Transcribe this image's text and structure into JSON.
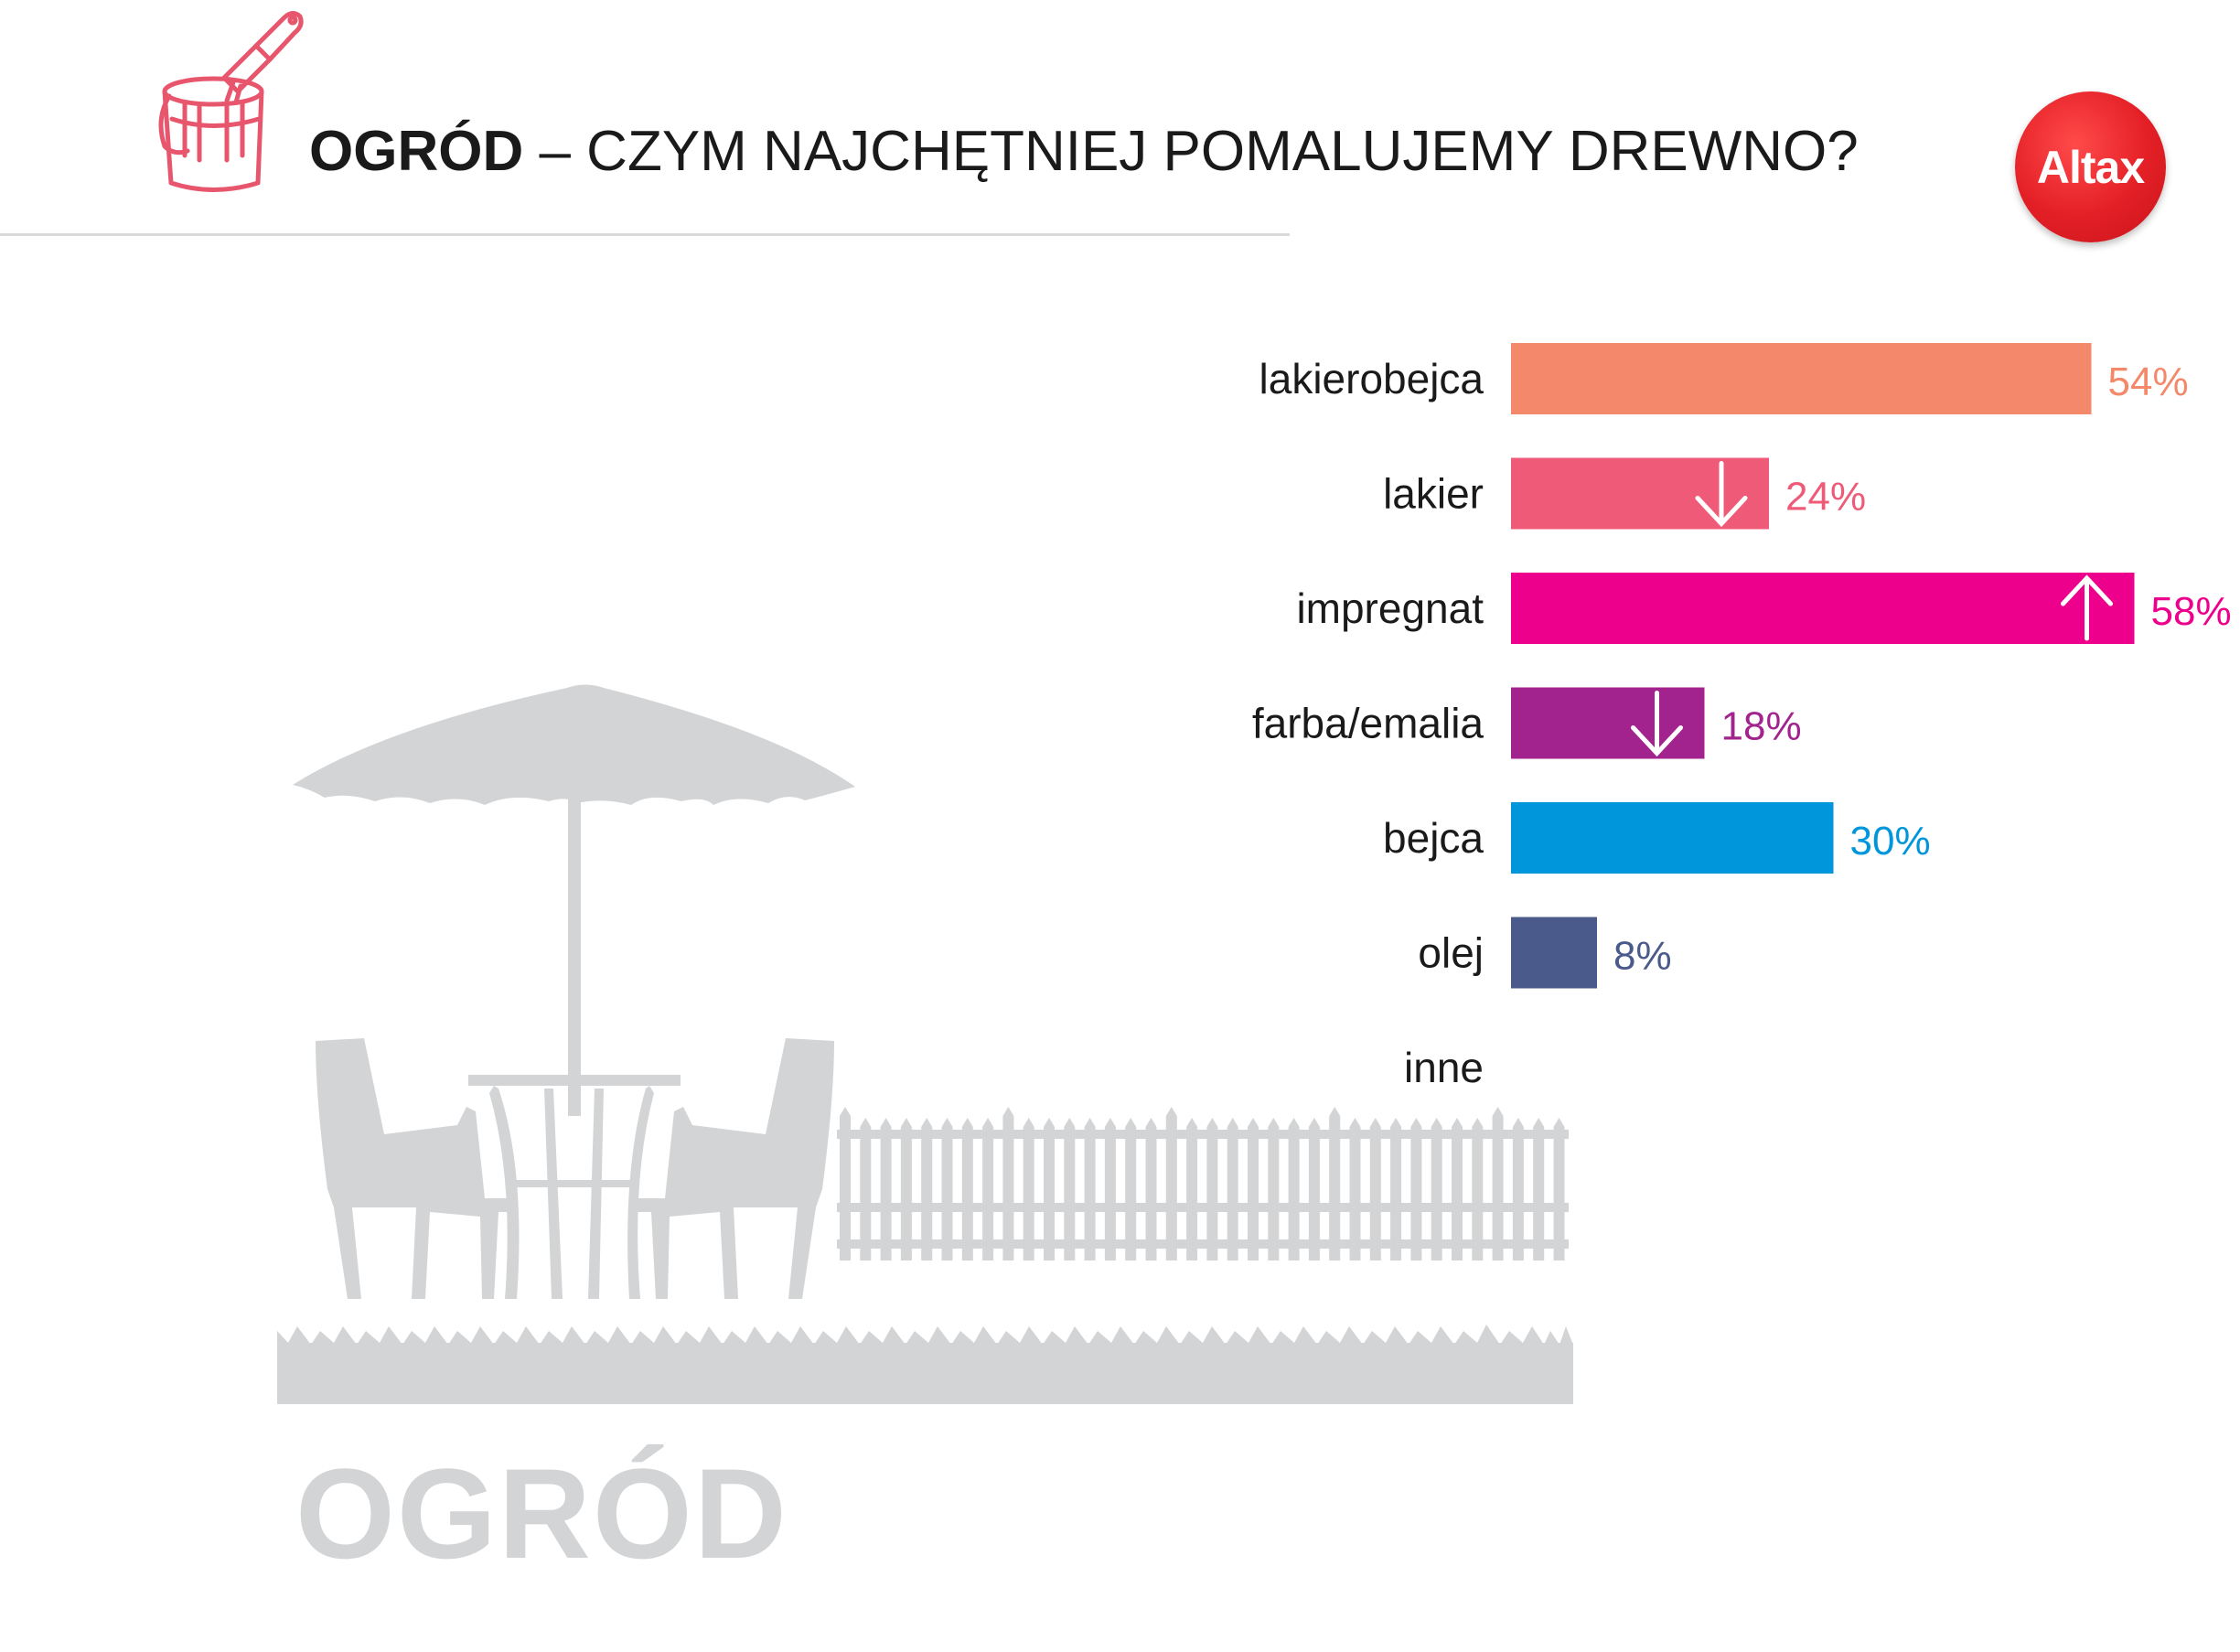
{
  "header": {
    "title_bold": "OGRÓD",
    "title_rest": " – CZYM NAJCHĘTNIEJ POMALUJEMY DREWNO?",
    "icon": "paint-bucket-brush-icon",
    "icon_color": "#e8566e"
  },
  "logo": {
    "text": "Altax",
    "color": "#e31f26"
  },
  "illustration": {
    "caption": "OGRÓD",
    "color": "#d3d4d6"
  },
  "chart_data": {
    "type": "bar",
    "orientation": "horizontal",
    "categories": [
      "lakierobejca",
      "lakier",
      "impregnat",
      "farba/emalia",
      "bejca",
      "olej",
      "inne"
    ],
    "values": [
      54,
      24,
      58,
      18,
      30,
      8,
      null
    ],
    "value_labels": [
      "54%",
      "24%",
      "58%",
      "18%",
      "30%",
      "8%",
      ""
    ],
    "colors": [
      "#f4886a",
      "#ef5a78",
      "#ec008c",
      "#a3238e",
      "#0096dc",
      "#4a5a8a",
      "#999999"
    ],
    "trend": [
      "",
      "down",
      "up",
      "down",
      "",
      "",
      ""
    ],
    "unit": "%",
    "xlim": [
      0,
      60
    ],
    "grid": false,
    "legend": "none"
  }
}
